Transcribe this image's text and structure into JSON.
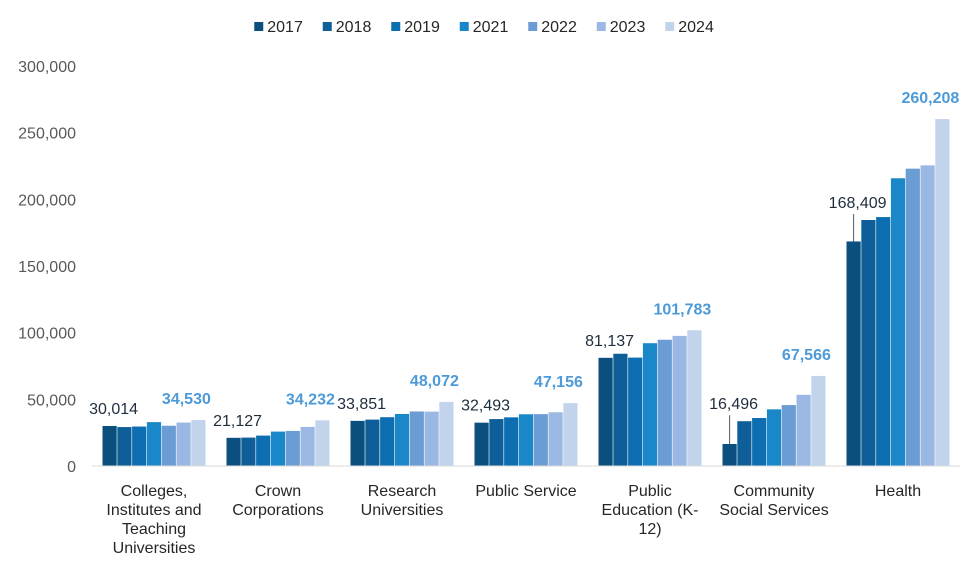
{
  "chart_data": {
    "type": "bar",
    "title": "",
    "xlabel": "",
    "ylabel": "",
    "ylim": [
      0,
      300000
    ],
    "yticks": [
      0,
      50000,
      100000,
      150000,
      200000,
      250000,
      300000
    ],
    "ytick_labels": [
      "0",
      "50,000",
      "100,000",
      "150,000",
      "200,000",
      "250,000",
      "300,000"
    ],
    "legend_position": "top-center",
    "categories": [
      [
        "Colleges,",
        "Institutes and",
        "Teaching",
        "Universities"
      ],
      [
        "Crown",
        "Corporations"
      ],
      [
        "Research",
        "Universities"
      ],
      [
        "Public Service"
      ],
      [
        "Public",
        "Education (K-",
        "12)"
      ],
      [
        "Community",
        "Social Services"
      ],
      [
        "Health"
      ]
    ],
    "series": [
      {
        "name": "2017",
        "color": "#0b4f7f",
        "values": [
          30014,
          21127,
          33851,
          32493,
          81137,
          16496,
          168409
        ]
      },
      {
        "name": "2018",
        "color": "#0e5f99",
        "values": [
          29200,
          21300,
          34800,
          35200,
          84200,
          33600,
          184500
        ]
      },
      {
        "name": "2019",
        "color": "#0d6fb1",
        "values": [
          29600,
          22800,
          36600,
          36500,
          81300,
          36000,
          186700
        ]
      },
      {
        "name": "2021",
        "color": "#1a87c8",
        "values": [
          32900,
          25800,
          39000,
          38800,
          92100,
          42500,
          215800
        ]
      },
      {
        "name": "2022",
        "color": "#6b9cd4",
        "values": [
          30200,
          26300,
          40900,
          38900,
          94700,
          45700,
          223000
        ]
      },
      {
        "name": "2023",
        "color": "#9ab8e3",
        "values": [
          32600,
          29300,
          40800,
          40300,
          97600,
          53400,
          225500
        ]
      },
      {
        "name": "2024",
        "color": "#c2d4ec",
        "values": [
          34530,
          34232,
          48072,
          47156,
          101783,
          67566,
          260208
        ]
      }
    ],
    "data_labels": {
      "first": [
        "30,014",
        "21,127",
        "33,851",
        "32,493",
        "81,137",
        "16,496",
        "168,409"
      ],
      "last": [
        "34,530",
        "34,232",
        "48,072",
        "47,156",
        "101,783",
        "67,566",
        "260,208"
      ]
    }
  }
}
